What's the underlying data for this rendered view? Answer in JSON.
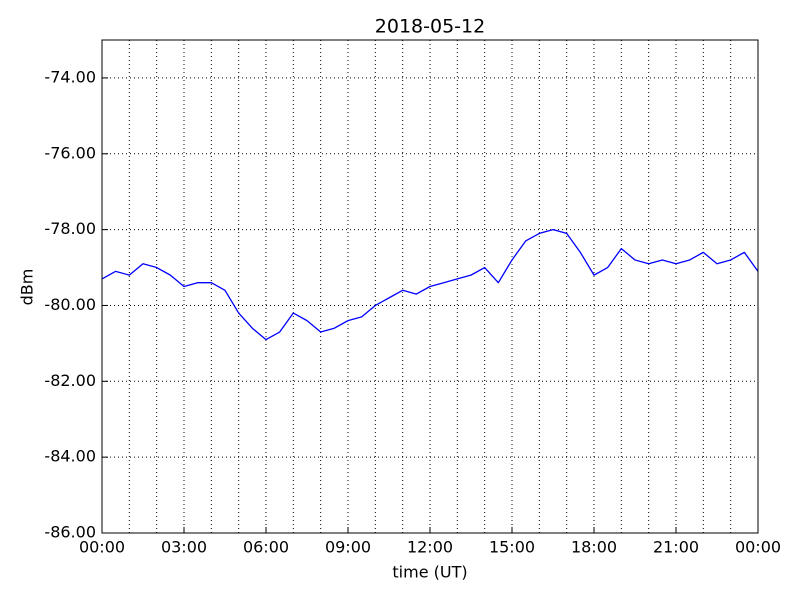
{
  "chart_data": {
    "type": "line",
    "title": "2018-05-12",
    "x_label": "time (UT)",
    "y_label": "dBm",
    "x": [
      0,
      0.5,
      1,
      1.5,
      2,
      2.5,
      3,
      3.5,
      4,
      4.5,
      5,
      5.5,
      6,
      6.5,
      7,
      7.5,
      8,
      8.5,
      9,
      9.5,
      10,
      10.5,
      11,
      11.5,
      12,
      12.5,
      13,
      13.5,
      14,
      14.5,
      15,
      15.5,
      16,
      16.5,
      17,
      17.5,
      18,
      18.5,
      19,
      19.5,
      20,
      20.5,
      21,
      21.5,
      22,
      22.5,
      23,
      23.5,
      24
    ],
    "series": [
      {
        "name": "dBm",
        "color": "#0000ff",
        "values": [
          -79.3,
          -79.1,
          -79.2,
          -78.9,
          -79.0,
          -79.2,
          -79.5,
          -79.4,
          -79.4,
          -79.6,
          -80.2,
          -80.6,
          -80.9,
          -80.7,
          -80.2,
          -80.4,
          -80.7,
          -80.6,
          -80.4,
          -80.3,
          -80.0,
          -79.8,
          -79.6,
          -79.7,
          -79.5,
          -79.4,
          -79.3,
          -79.2,
          -79.0,
          -79.4,
          -78.8,
          -78.3,
          -78.1,
          -78.0,
          -78.1,
          -78.6,
          -79.2,
          -79.0,
          -78.5,
          -78.8,
          -78.9,
          -78.8,
          -78.9,
          -78.8,
          -78.6,
          -78.9,
          -78.8,
          -78.6,
          -79.1
        ]
      }
    ],
    "xlim": [
      0,
      24
    ],
    "xticks": [
      {
        "value": 0,
        "label": "00:00"
      },
      {
        "value": 3,
        "label": "03:00"
      },
      {
        "value": 6,
        "label": "06:00"
      },
      {
        "value": 9,
        "label": "09:00"
      },
      {
        "value": 12,
        "label": "12:00"
      },
      {
        "value": 15,
        "label": "15:00"
      },
      {
        "value": 18,
        "label": "18:00"
      },
      {
        "value": 21,
        "label": "21:00"
      },
      {
        "value": 24,
        "label": "00:00"
      }
    ],
    "xminorticks": [
      1,
      2,
      4,
      5,
      7,
      8,
      10,
      11,
      13,
      14,
      16,
      17,
      19,
      20,
      22,
      23
    ],
    "ylim": [
      -86,
      -73
    ],
    "yticks": [
      {
        "value": -86,
        "label": "-86.00"
      },
      {
        "value": -84,
        "label": "-84.00"
      },
      {
        "value": -82,
        "label": "-82.00"
      },
      {
        "value": -80,
        "label": "-80.00"
      },
      {
        "value": -78,
        "label": "-78.00"
      },
      {
        "value": -76,
        "label": "-76.00"
      },
      {
        "value": -74,
        "label": "-74.00"
      }
    ],
    "grid": true
  }
}
